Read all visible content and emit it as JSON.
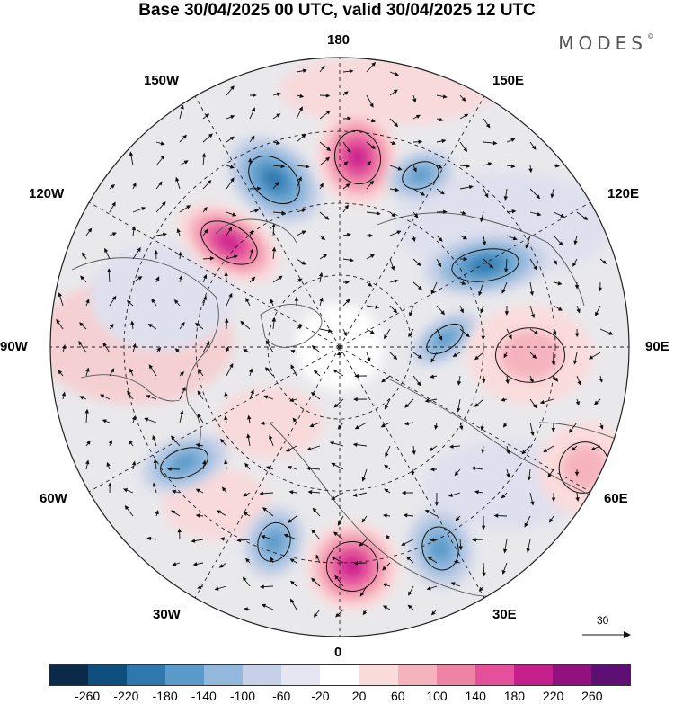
{
  "title": "Base 30/04/2025 00 UTC, valid 30/04/2025 12 UTC",
  "brand": "MODES",
  "brand_mark": "©",
  "longitude_labels": {
    "top": "180",
    "bottom": "0",
    "left": "90W",
    "right": "90E",
    "upper_left_1": "150W",
    "upper_left_2": "120W",
    "upper_right_1": "150E",
    "upper_right_2": "120E",
    "lower_left_1": "60W",
    "lower_left_2": "30W",
    "lower_right_1": "60E",
    "lower_right_2": "30E"
  },
  "vector_reference": "30",
  "colorbar": {
    "colors": [
      "#0b2a4a",
      "#0e4f7e",
      "#2e78ae",
      "#5b9bc9",
      "#93b8dc",
      "#c6d0e6",
      "#e6e6f2",
      "#ffffff",
      "#fbdcdc",
      "#f5b4bd",
      "#ee83a6",
      "#e4509a",
      "#c41f8b",
      "#93107f",
      "#5d0f74"
    ],
    "tick_labels": [
      "-260",
      "-220",
      "-180",
      "-140",
      "-100",
      "-60",
      "-20",
      "20",
      "60",
      "100",
      "140",
      "180",
      "220",
      "260"
    ]
  },
  "anomaly_centers": [
    {
      "name": "neg-150W",
      "sign": "negative",
      "strength": "strong"
    },
    {
      "name": "pos-180",
      "sign": "positive",
      "strength": "strong"
    },
    {
      "name": "neg-160E",
      "sign": "negative",
      "strength": "moderate"
    },
    {
      "name": "pos-130W",
      "sign": "positive",
      "strength": "strong"
    },
    {
      "name": "neg-120E",
      "sign": "negative",
      "strength": "strong"
    },
    {
      "name": "neg-100E",
      "sign": "negative",
      "strength": "moderate"
    },
    {
      "name": "pos-90E",
      "sign": "positive",
      "strength": "weak"
    },
    {
      "name": "neg-70W",
      "sign": "negative",
      "strength": "moderate"
    },
    {
      "name": "neg-10W",
      "sign": "negative",
      "strength": "moderate"
    },
    {
      "name": "pos-0",
      "sign": "positive",
      "strength": "strong"
    },
    {
      "name": "neg-25E",
      "sign": "negative",
      "strength": "moderate"
    },
    {
      "name": "pos-50E",
      "sign": "positive",
      "strength": "weak"
    }
  ]
}
